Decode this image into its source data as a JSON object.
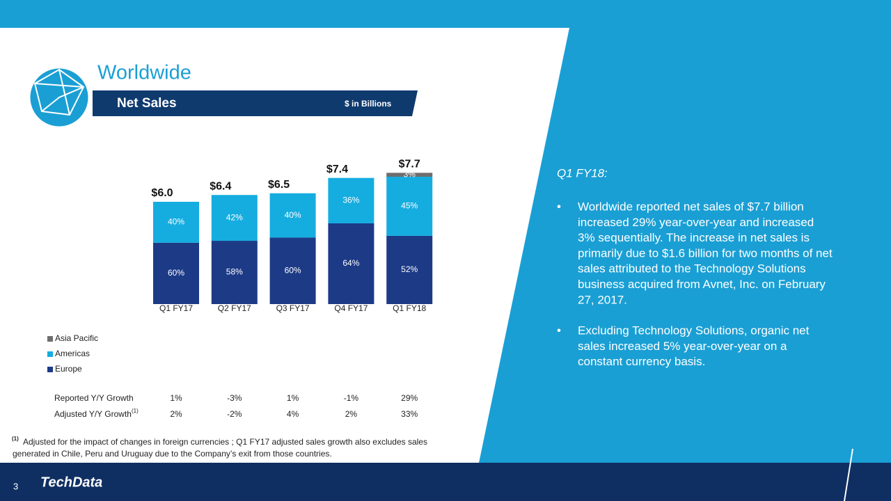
{
  "header": {
    "title": "Worldwide",
    "band_title": "Net Sales",
    "unit_note": "$ in Billions"
  },
  "chart_data": {
    "type": "stacked_bar",
    "categories": [
      "Q1 FY17",
      "Q2 FY17",
      "Q3 FY17",
      "Q4 FY17",
      "Q1 FY18"
    ],
    "totals": {
      "values": [
        6.0,
        6.4,
        6.5,
        7.4,
        7.7
      ],
      "value_labels": [
        "$6.0",
        "$6.4",
        "$6.5",
        "$7.4",
        "$7.7"
      ]
    },
    "series": [
      {
        "name": "Europe",
        "color": "#1c3a86",
        "values": [
          60,
          58,
          60,
          64,
          52
        ],
        "value_labels": [
          "60%",
          "58%",
          "60%",
          "64%",
          "52%"
        ]
      },
      {
        "name": "Americas",
        "color": "#15ade0",
        "values": [
          40,
          42,
          40,
          36,
          45
        ],
        "value_labels": [
          "40%",
          "42%",
          "40%",
          "36%",
          "45%"
        ]
      },
      {
        "name": "Asia Pacific",
        "color": "#6e6e6e",
        "values": [
          null,
          null,
          null,
          null,
          3
        ],
        "value_labels": [
          null,
          null,
          null,
          null,
          "3%"
        ]
      }
    ]
  },
  "table": {
    "rows": [
      {
        "label": "Reported Y/Y Growth",
        "values": [
          "1%",
          "-3%",
          "1%",
          "-1%",
          "29%"
        ]
      },
      {
        "label": "Adjusted Y/Y Growth",
        "note": "(1)",
        "values": [
          "2%",
          "-2%",
          "4%",
          "2%",
          "33%"
        ]
      }
    ]
  },
  "footnote": {
    "mark": "(1)",
    "lines": [
      "Adjusted for the impact of changes in foreign currencies ; Q1 FY17 adjusted sales growth also excludes sales",
      "generated in Chile, Peru and Uruguay due to the Company’s exit from those countries."
    ]
  },
  "commentary": {
    "heading": "Q1 FY18:",
    "bullets": [
      {
        "lines": [
          "Worldwide reported net sales of $7.7 billion",
          "increased 29% year-over-year and increased",
          "3% sequentially. The increase in net sales is",
          "primarily due to $1.6 billion for two months of net",
          "sales attributed to the Technology Solutions",
          "business acquired from Avnet, Inc. on February",
          "27, 2017."
        ]
      },
      {
        "lines": [
          "Excluding Technology Solutions, organic net",
          "sales increased 5% year-over-year on a",
          "constant currency basis."
        ]
      }
    ]
  },
  "footer": {
    "page": "3",
    "logo": "TechData"
  }
}
